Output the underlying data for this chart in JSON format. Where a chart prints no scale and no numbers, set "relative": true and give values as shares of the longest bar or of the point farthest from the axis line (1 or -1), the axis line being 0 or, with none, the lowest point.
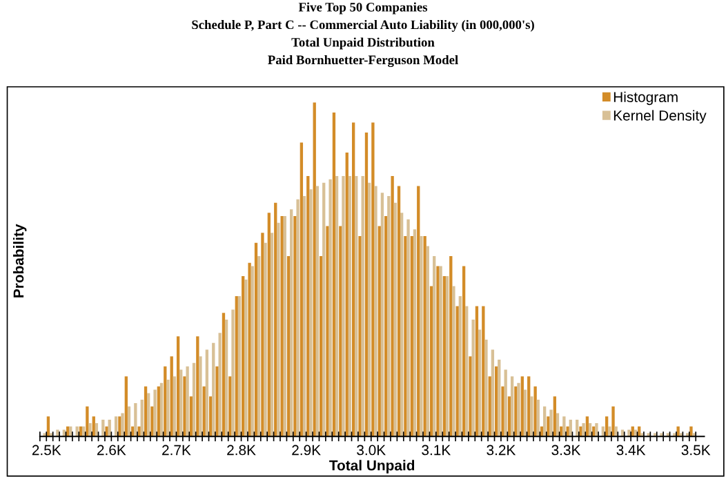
{
  "chart_data": {
    "type": "bar",
    "relative": true,
    "title": "Five Top 50 Companies\nSchedule P, Part C -- Commercial Auto Liability (in 000,000's)\nTotal Unpaid Distribution\nPaid Bornhuetter-Ferguson Model",
    "xlabel": "Total Unpaid",
    "ylabel": "Probability",
    "x": [
      2495,
      2505,
      2515,
      2525,
      2535,
      2545,
      2555,
      2565,
      2575,
      2585,
      2595,
      2605,
      2615,
      2625,
      2635,
      2645,
      2655,
      2665,
      2675,
      2685,
      2695,
      2705,
      2715,
      2725,
      2735,
      2745,
      2755,
      2765,
      2775,
      2785,
      2795,
      2805,
      2815,
      2825,
      2835,
      2845,
      2855,
      2865,
      2875,
      2885,
      2895,
      2905,
      2915,
      2925,
      2935,
      2945,
      2955,
      2965,
      2975,
      2985,
      2995,
      3005,
      3015,
      3025,
      3035,
      3045,
      3055,
      3065,
      3075,
      3085,
      3095,
      3105,
      3115,
      3125,
      3135,
      3145,
      3155,
      3165,
      3175,
      3185,
      3195,
      3205,
      3215,
      3225,
      3235,
      3245,
      3255,
      3265,
      3275,
      3285,
      3295,
      3305,
      3315,
      3325,
      3335,
      3345,
      3355,
      3365,
      3375,
      3385,
      3395,
      3405,
      3415,
      3425,
      3435,
      3445,
      3455,
      3465,
      3475,
      3485,
      3495
    ],
    "xlim": [
      2490,
      3513
    ],
    "xticks": [
      {
        "value": 2500,
        "label": "2.5K"
      },
      {
        "value": 2600,
        "label": "2.6K"
      },
      {
        "value": 2700,
        "label": "2.7K"
      },
      {
        "value": 2800,
        "label": "2.8K"
      },
      {
        "value": 2900,
        "label": "2.9K"
      },
      {
        "value": 3000,
        "label": "3.0K"
      },
      {
        "value": 3100,
        "label": "3.1K"
      },
      {
        "value": 3200,
        "label": "3.2K"
      },
      {
        "value": 3300,
        "label": "3.3K"
      },
      {
        "value": 3400,
        "label": "3.4K"
      },
      {
        "value": 3500,
        "label": "3.5K"
      }
    ],
    "series": [
      {
        "name": "Histogram",
        "color": "#d38c28",
        "values": [
          0,
          0.06,
          0,
          0,
          0.03,
          0,
          0.03,
          0.09,
          0.06,
          0,
          0.03,
          0,
          0.06,
          0.18,
          0.03,
          0.03,
          0.15,
          0.09,
          0.15,
          0.21,
          0.24,
          0.3,
          0.18,
          0.12,
          0.3,
          0.15,
          0.12,
          0.21,
          0.37,
          0.18,
          0.42,
          0.48,
          0.52,
          0.58,
          0.61,
          0.67,
          0.7,
          0.66,
          0.54,
          0.66,
          0.88,
          0.78,
          1.0,
          0.54,
          0.63,
          0.97,
          0.63,
          0.85,
          0.94,
          0.6,
          0.91,
          0.94,
          0.63,
          0.66,
          0.78,
          0.75,
          0.6,
          0.6,
          0.75,
          0.6,
          0.45,
          0.51,
          0.48,
          0.54,
          0.39,
          0.51,
          0.24,
          0.39,
          0.39,
          0.18,
          0.21,
          0.15,
          0.12,
          0.15,
          0.18,
          0.18,
          0.15,
          0.03,
          0.06,
          0.12,
          0.03,
          0.03,
          0,
          0.03,
          0.06,
          0.03,
          0,
          0.06,
          0.09,
          0,
          0,
          0.03,
          0.03,
          0,
          0,
          0,
          0,
          0,
          0.03,
          0,
          0.03
        ]
      },
      {
        "name": "Kernel Density",
        "color": "#d8c096",
        "values": [
          0.01,
          0.01,
          0.02,
          0.02,
          0.03,
          0.03,
          0.03,
          0.04,
          0.04,
          0.05,
          0.05,
          0.06,
          0.07,
          0.09,
          0.1,
          0.11,
          0.13,
          0.14,
          0.16,
          0.17,
          0.18,
          0.2,
          0.21,
          0.22,
          0.24,
          0.26,
          0.28,
          0.31,
          0.35,
          0.38,
          0.42,
          0.47,
          0.51,
          0.54,
          0.58,
          0.61,
          0.64,
          0.66,
          0.68,
          0.71,
          0.72,
          0.74,
          0.75,
          0.76,
          0.77,
          0.78,
          0.78,
          0.78,
          0.78,
          0.78,
          0.76,
          0.75,
          0.73,
          0.72,
          0.7,
          0.67,
          0.65,
          0.62,
          0.6,
          0.57,
          0.54,
          0.51,
          0.48,
          0.45,
          0.42,
          0.39,
          0.35,
          0.32,
          0.29,
          0.26,
          0.23,
          0.2,
          0.18,
          0.16,
          0.14,
          0.12,
          0.11,
          0.09,
          0.08,
          0.07,
          0.06,
          0.05,
          0.05,
          0.04,
          0.04,
          0.04,
          0.03,
          0.03,
          0.03,
          0.02,
          0.02,
          0.02,
          0.01,
          0.01,
          0.01,
          0.01,
          0.01,
          0.01,
          0.01,
          0.01,
          0.01
        ]
      }
    ],
    "legend": "top right",
    "grid": false
  }
}
